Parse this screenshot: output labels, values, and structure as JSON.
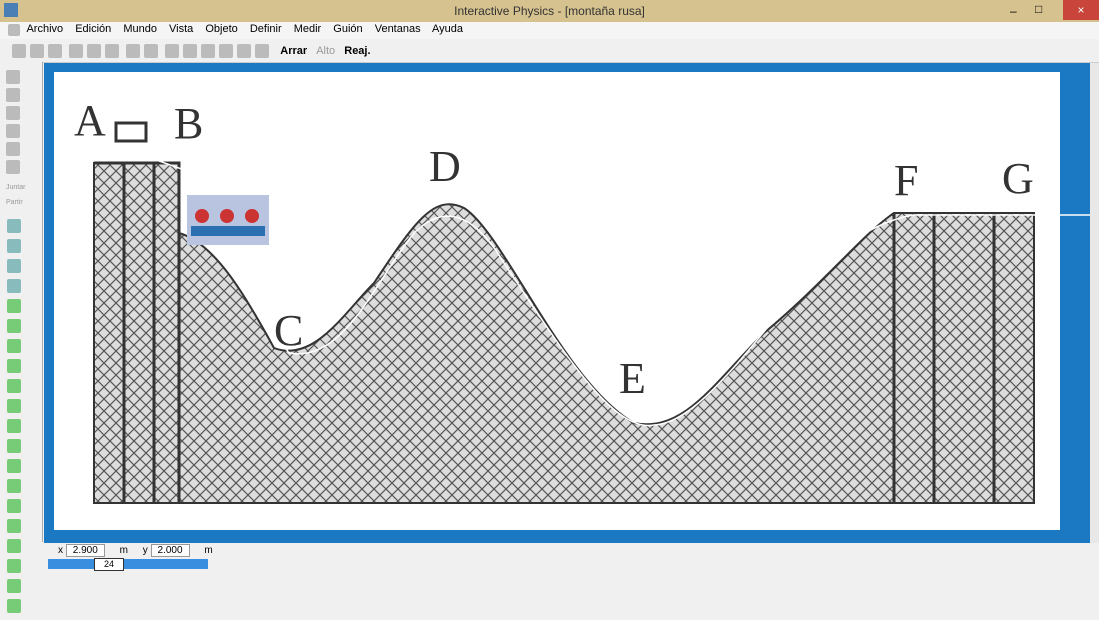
{
  "title_bar": {
    "title": "Interactive Physics - [montaña rusa]"
  },
  "menu": [
    "Archivo",
    "Edición",
    "Mundo",
    "Vista",
    "Objeto",
    "Definir",
    "Medir",
    "Guión",
    "Ventanas",
    "Ayuda"
  ],
  "toolbar": {
    "buttons": [
      "Arrar",
      "Alto",
      "Reaj."
    ]
  },
  "palette": {
    "labels": [
      "Juntar",
      "Partir"
    ]
  },
  "canvas": {
    "labels": [
      "A",
      "B",
      "C",
      "D",
      "E",
      "F",
      "G"
    ]
  },
  "status": {
    "x_label": "x",
    "x": "2.900",
    "x_unit": "m",
    "y_label": "y",
    "y": "2.000",
    "y_unit": "m",
    "frame": "24"
  }
}
